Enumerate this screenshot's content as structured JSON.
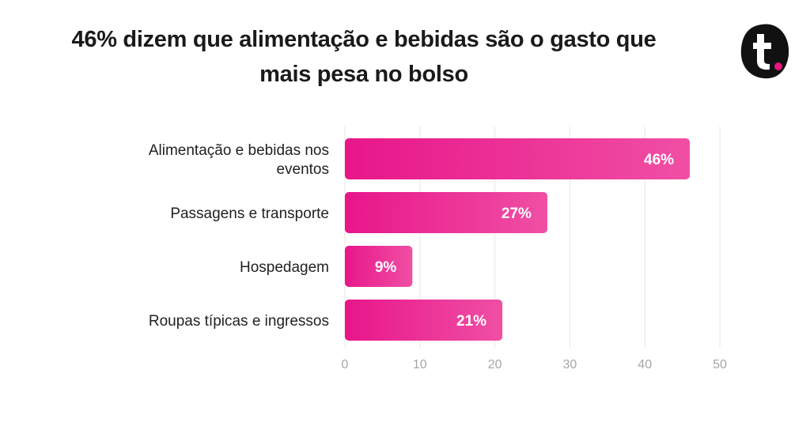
{
  "title": {
    "line1": "46% dizem que alimentação e bebidas são o gasto que",
    "line2": "mais pesa no bolso"
  },
  "logo": {
    "icon": "t-logo-icon",
    "color": "#111111",
    "dot_color": "#e6167e"
  },
  "colors": {
    "bar_start": "#e8168a",
    "bar_end": "#f04fa4",
    "grid": "#ecebe3",
    "tick": "#a6a6a6"
  },
  "chart_data": {
    "type": "bar",
    "orientation": "horizontal",
    "title": "46% dizem que alimentação e bebidas são o gasto que mais pesa no bolso",
    "categories": [
      [
        "Alimentação e bebidas nos",
        "eventos"
      ],
      [
        "Passagens e transporte"
      ],
      [
        "Hospedagem"
      ],
      [
        "Roupas típicas e ingressos"
      ]
    ],
    "values": [
      46,
      27,
      9,
      21
    ],
    "value_labels": [
      "46%",
      "27%",
      "9%",
      "21%"
    ],
    "xlim": [
      0,
      50
    ],
    "xticks": [
      "0",
      "10",
      "20",
      "30",
      "40",
      "50"
    ],
    "grid": true,
    "legend": "none"
  }
}
